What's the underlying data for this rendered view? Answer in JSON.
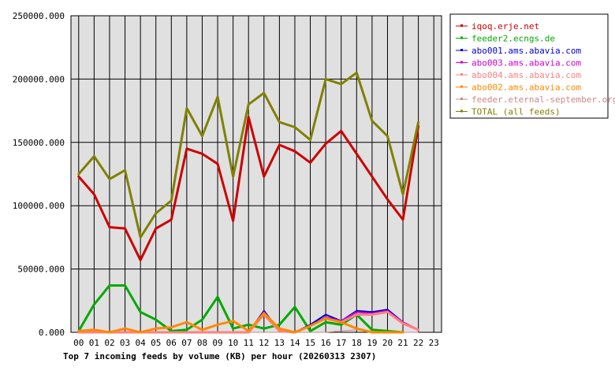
{
  "chart_data": {
    "type": "line",
    "title": "Top 7 incoming feeds by volume (KB) per hour (20260313 2307)",
    "xlabel": "",
    "ylabel": "",
    "ylim": [
      0,
      250000
    ],
    "y_ticks": [
      "0.000",
      "50000.000",
      "100000.000",
      "150000.000",
      "200000.000",
      "250000.000"
    ],
    "y_tick_values": [
      0,
      50000,
      100000,
      150000,
      200000,
      250000
    ],
    "x": [
      "00",
      "01",
      "02",
      "03",
      "04",
      "05",
      "06",
      "07",
      "08",
      "09",
      "10",
      "11",
      "12",
      "13",
      "14",
      "15",
      "16",
      "17",
      "18",
      "19",
      "20",
      "21",
      "22",
      "23"
    ],
    "grid": true,
    "legend_position": "right",
    "plot_background": "#e0e0e0",
    "series": [
      {
        "name": "iqoq.erje.net",
        "color": "#cc0000",
        "width": 3,
        "values": [
          123000,
          109000,
          83000,
          82000,
          57000,
          82000,
          89000,
          145000,
          141000,
          133000,
          88000,
          170000,
          123000,
          148000,
          143000,
          134000,
          149000,
          159000,
          141000,
          123000,
          105000,
          89000,
          163000,
          null
        ]
      },
      {
        "name": "feeder2.ecngs.de",
        "color": "#00aa00",
        "width": 3,
        "values": [
          1000,
          22000,
          37000,
          37000,
          16000,
          10000,
          1000,
          2000,
          10000,
          28000,
          3000,
          6000,
          3000,
          6000,
          20000,
          1000,
          8000,
          6000,
          14000,
          2000,
          1000,
          0,
          null,
          null
        ]
      },
      {
        "name": "abo001.ams.abavia.com",
        "color": "#0000cc",
        "width": 2,
        "values": [
          0,
          0,
          0,
          0,
          0,
          0,
          0,
          0,
          0,
          0,
          0,
          0,
          17000,
          1000,
          0,
          6000,
          14000,
          9000,
          17000,
          16000,
          18000,
          8000,
          2000,
          null
        ]
      },
      {
        "name": "abo003.ams.abavia.com",
        "color": "#cc00cc",
        "width": 2,
        "values": [
          0,
          0,
          0,
          0,
          0,
          0,
          0,
          0,
          0,
          0,
          0,
          0,
          16000,
          1000,
          0,
          5000,
          12000,
          9000,
          16000,
          15000,
          17000,
          8000,
          2000,
          null
        ]
      },
      {
        "name": "abo004.ams.abavia.com",
        "color": "#ff8080",
        "width": 3,
        "values": [
          0,
          0,
          0,
          0,
          0,
          0,
          0,
          0,
          0,
          0,
          0,
          0,
          14000,
          1000,
          0,
          5000,
          11000,
          8000,
          14000,
          14000,
          16000,
          7000,
          2000,
          null
        ]
      },
      {
        "name": "abo002.ams.abavia.com",
        "color": "#ff8800",
        "width": 3,
        "values": [
          1000,
          2000,
          0,
          3000,
          0,
          3000,
          4000,
          8000,
          2000,
          6000,
          9000,
          1000,
          15000,
          3000,
          0,
          5000,
          11000,
          8000,
          3000,
          0,
          0,
          0,
          null,
          null
        ]
      },
      {
        "name": "feeder.eternal-september.org",
        "color": "#cc8888",
        "width": 1,
        "values": [
          0,
          0,
          0,
          0,
          0,
          0,
          0,
          0,
          0,
          0,
          0,
          0,
          0,
          0,
          0,
          0,
          0,
          1000,
          2000,
          1000,
          0,
          0,
          0,
          null
        ]
      },
      {
        "name": "TOTAL (all feeds)",
        "color": "#808000",
        "width": 3,
        "values": [
          125000,
          139000,
          121000,
          128000,
          75000,
          94000,
          104000,
          177000,
          155000,
          186000,
          123000,
          180000,
          189000,
          166000,
          162000,
          152000,
          200000,
          196000,
          205000,
          167000,
          155000,
          109000,
          166000,
          null
        ]
      }
    ]
  }
}
